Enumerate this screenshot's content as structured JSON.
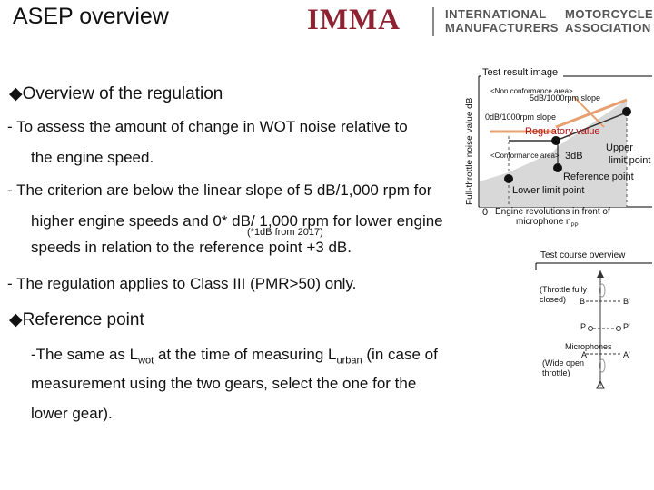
{
  "header": {
    "title": "ASEP overview",
    "logo_main": "IMMA",
    "logo_line1_left": "INTERNATIONAL",
    "logo_line2_left": "MANUFACTURERS",
    "logo_line1_right": "MOTORCYCLE",
    "logo_line2_right": "ASSOCIATION"
  },
  "regulation": {
    "heading": "◆Overview of the regulation",
    "item1_line1": "-   To assess the amount of change in WOT noise relative to",
    "item1_line2": "the engine speed.",
    "item2_line1": "-   The criterion are below the linear slope of 5 dB/1,000 rpm for",
    "item2_line2": "higher engine speeds and 0* dB/ 1,000 rpm for lower engine",
    "item2_note": "(*1dB from 2017)",
    "item2_line3": "speeds in relation to the reference point +3 dB.",
    "item3": "-   The regulation applies to Class III (PMR>50) only."
  },
  "reference": {
    "heading": "◆Reference point",
    "line1_a": "-The same as L",
    "line1_sub1": "wot",
    "line1_b": " at the time of measuring L",
    "line1_sub2": "urban",
    "line1_c": " (in case of",
    "line2": "measurement using the two gears, select the one for the",
    "line3": "lower gear)."
  },
  "test_result": {
    "title": "Test result image",
    "y_axis_label": "Full-throttle noise value dB",
    "non_conformance": "<Non conformance area>",
    "slope_5db": "5dB/1000rpm slope",
    "slope_0db": "0dB/1000rpm slope",
    "regulatory_value": "Regulatory value",
    "conformance": "<Conformance area>",
    "three_db": "3dB",
    "upper_line1": "Upper",
    "upper_line2": "limit point",
    "reference_point": "Reference point",
    "lower_limit": "Lower  limit point",
    "origin": "0",
    "x_axis_label_line1": "Engine revolutions in front of",
    "x_axis_label_line2": "microphone n",
    "x_axis_label_sub": "PP"
  },
  "course": {
    "title": "Test course overview",
    "throttle_line1": "(Throttle fully",
    "throttle_line2": "closed)",
    "b_label": "B",
    "b_prime": "B'",
    "p_label": "P",
    "p_prime": "P'",
    "microphones": "Microphones",
    "a_label": "A",
    "a_prime": "A'",
    "wide_open_line1": "(Wide open",
    "wide_open_line2": "throttle)"
  },
  "colors": {
    "logo": "#8e2233",
    "regulatory_value": "#b01010",
    "slope_line": "#e8a070",
    "conformance_fill": "#d8d8d8"
  }
}
